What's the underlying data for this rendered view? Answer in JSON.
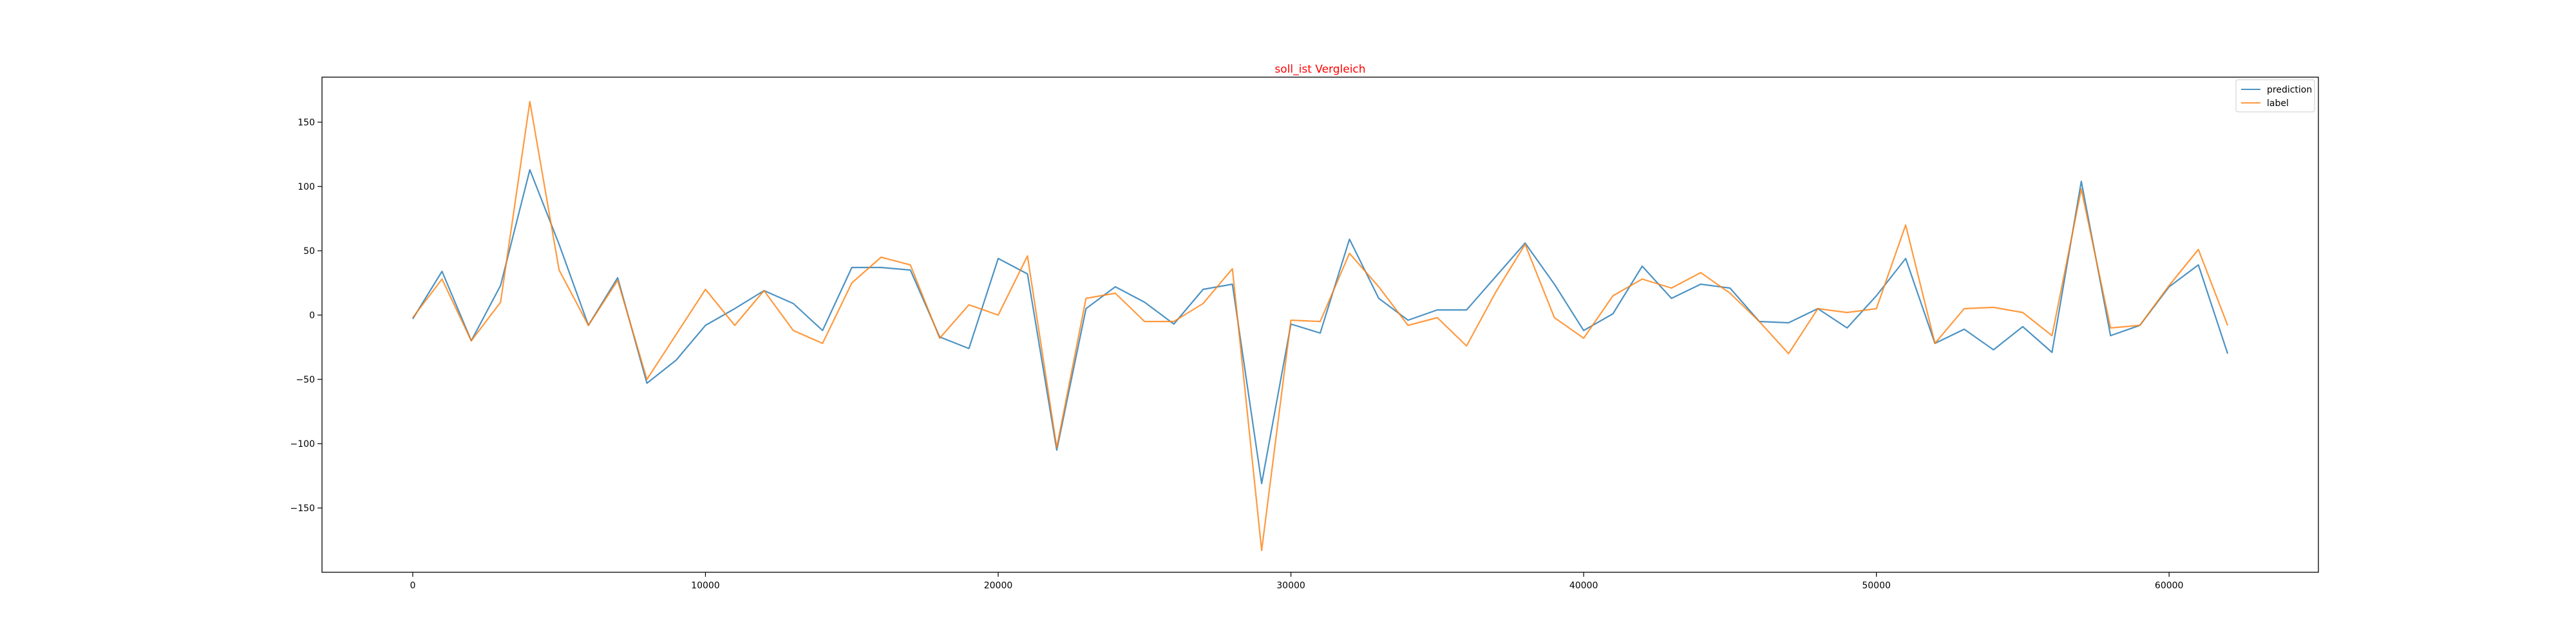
{
  "chart_data": {
    "type": "line",
    "title": "soll_ist Vergleich",
    "title_color": "#ff0000",
    "xlabel": "",
    "ylabel": "",
    "xlim": [
      -3100,
      65100
    ],
    "ylim": [
      -200,
      185
    ],
    "xticks": [
      0,
      10000,
      20000,
      30000,
      40000,
      50000,
      60000
    ],
    "xtick_labels": [
      "0",
      "10000",
      "20000",
      "30000",
      "40000",
      "50000",
      "60000"
    ],
    "yticks": [
      -150,
      -100,
      -50,
      0,
      50,
      100,
      150
    ],
    "ytick_labels": [
      "−150",
      "−100",
      "−50",
      "0",
      "50",
      "100",
      "150"
    ],
    "grid": false,
    "legend_position": "top-right",
    "x": [
      0,
      1000,
      2000,
      3000,
      4000,
      5000,
      6000,
      7000,
      8000,
      9000,
      10000,
      11000,
      12000,
      13000,
      14000,
      15000,
      16000,
      17000,
      18000,
      19000,
      20000,
      21000,
      22000,
      23000,
      24000,
      25000,
      26000,
      27000,
      28000,
      29000,
      30000,
      31000,
      32000,
      33000,
      34000,
      35000,
      36000,
      37000,
      38000,
      39000,
      40000,
      41000,
      42000,
      43000,
      44000,
      45000,
      46000,
      47000,
      48000,
      49000,
      50000,
      51000,
      52000,
      53000,
      54000,
      55000,
      56000,
      57000,
      58000,
      59000,
      60000,
      61000,
      62000
    ],
    "series": [
      {
        "name": "prediction",
        "color": "#1f77b4",
        "values": [
          -3,
          34,
          -20,
          23,
          113,
          55,
          -8,
          29,
          -53,
          -35,
          -8,
          5,
          19,
          9,
          -12,
          37,
          37,
          35,
          -17,
          -26,
          44,
          32,
          -105,
          5,
          22,
          10,
          -7,
          20,
          24,
          -131,
          -7,
          -14,
          59,
          13,
          -4,
          4,
          4,
          30,
          56,
          24,
          -12,
          1,
          38,
          13,
          24,
          21,
          -5,
          -6,
          5,
          -10,
          15,
          44,
          -22,
          -11,
          -27,
          -9,
          -29,
          104,
          -16,
          -8,
          22,
          39,
          -30
        ]
      },
      {
        "name": "label",
        "color": "#ff7f0e",
        "values": [
          -2,
          28,
          -20,
          10,
          166,
          35,
          -8,
          27,
          -50,
          -15,
          20,
          -8,
          19,
          -12,
          -22,
          25,
          45,
          39,
          -18,
          8,
          0,
          46,
          -103,
          13,
          17,
          -5,
          -5,
          9,
          36,
          -183,
          -4,
          -5,
          48,
          22,
          -8,
          -2,
          -24,
          18,
          55,
          -2,
          -18,
          15,
          28,
          21,
          33,
          17,
          -5,
          -30,
          5,
          2,
          5,
          70,
          -22,
          5,
          6,
          2,
          -16,
          98,
          -10,
          -8,
          23,
          51,
          -8
        ]
      }
    ]
  }
}
